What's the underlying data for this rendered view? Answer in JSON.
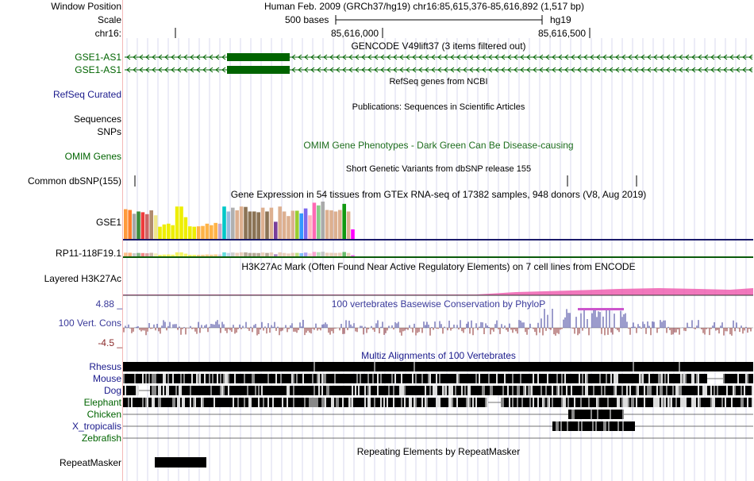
{
  "header": {
    "window_position_label": "Window Position",
    "window_position_value": "Human Feb. 2009 (GRCh37/hg19)   chr16:85,615,376-85,616,892 (1,517 bp)",
    "scale_label": "Scale",
    "scale_bar_text": "500 bases",
    "scale_assembly": "hg19",
    "chrom_label": "chr16:",
    "tick_1": "85,616,000",
    "tick_2": "85,616,500"
  },
  "gencode": {
    "title": "GENCODE V49lift37 (3 items filtered out)",
    "items": [
      "GSE1-AS1",
      "GSE1-AS1"
    ]
  },
  "refseq": {
    "title": "RefSeq genes from NCBI",
    "label": "RefSeq Curated"
  },
  "publications": {
    "title": "Publications: Sequences in Scientific Articles",
    "label_1": "Sequences",
    "label_2": "SNPs"
  },
  "omim": {
    "title": "OMIM Gene Phenotypes - Dark Green Can Be Disease-causing",
    "label": "OMIM Genes"
  },
  "dbsnp": {
    "title": "Short Genetic Variants from dbSNP release 155",
    "label": "Common dbSNP(155)"
  },
  "gtex": {
    "title": "Gene Expression in 54 tissues from GTEx RNA-seq of 17382 samples, 948 donors (V8, Aug 2019)",
    "gene_1": "GSE1",
    "gene_2": "RP11-118F19.1"
  },
  "h3k27ac": {
    "title": "H3K27Ac Mark (Often Found Near Active Regulatory Elements) on 7 cell lines from ENCODE",
    "label": "Layered H3K27Ac"
  },
  "conservation": {
    "title": "100 vertebrates Basewise Conservation by PhyloP",
    "label": "100 Vert. Cons",
    "max_label": "4.88 _",
    "min_label": "-4.5 _"
  },
  "multiz": {
    "title": "Multiz Alignments of 100 Vertebrates",
    "species": [
      "Rhesus",
      "Mouse",
      "Dog",
      "Elephant",
      "Chicken",
      "X_tropicalis",
      "Zebrafish"
    ]
  },
  "repeatmasker": {
    "title": "Repeating Elements by RepeatMasker",
    "label": "RepeatMasker"
  },
  "colors": {
    "gene_green": "#006400",
    "label_blue": "#1a1a8c",
    "label_green": "#006400",
    "omim_green": "#1e6e1e",
    "cons_blue": "#3a3a9a",
    "cons_red": "#8a2a2a",
    "h3k27_pink": "#ef5fb0",
    "grid": "#d9d9ef"
  },
  "gtex_tissue_colors": [
    "#ff9a3c",
    "#ff7f2a",
    "#a6a6a6",
    "#3c8c3c",
    "#ee3b3b",
    "#cc6666",
    "#b08a6e",
    "#f0e68c",
    "#eeee00",
    "#eeee00",
    "#eeee00",
    "#eeee00",
    "#eeee00",
    "#eeee00",
    "#eeee00",
    "#eeee00",
    "#eeee00",
    "#ffb347",
    "#ffb347",
    "#ffb347",
    "#ffb347",
    "#ffb347",
    "#c8a8c8",
    "#00c8c8",
    "#99bbdd",
    "#b0b0b0",
    "#ddb090",
    "#ddb090",
    "#8b7355",
    "#8b7355",
    "#8b7355",
    "#8b7355",
    "#ddb090",
    "#8b7355",
    "#ddb090",
    "#7a3d9a",
    "#ddb090",
    "#ddb090",
    "#ddb090",
    "#ddb090",
    "#9acd32",
    "#3399ff",
    "#7b68ee",
    "#ffb6c1",
    "#ff69b4",
    "#88cc88",
    "#aaaaaa",
    "#ddb090",
    "#ddb090",
    "#ddb090",
    "#ddb090",
    "#119911",
    "#ddb090",
    "#ff00ff"
  ],
  "gtex_values": [
    0.78,
    0.76,
    0.66,
    0.72,
    0.7,
    0.65,
    0.75,
    0.62,
    0.32,
    0.38,
    0.4,
    0.36,
    0.85,
    0.85,
    0.57,
    0.33,
    0.32,
    0.33,
    0.34,
    0.4,
    0.36,
    0.42,
    0.4,
    0.85,
    0.72,
    0.82,
    0.75,
    0.85,
    0.84,
    0.72,
    0.72,
    0.7,
    0.82,
    0.72,
    0.82,
    0.45,
    0.85,
    0.72,
    0.6,
    0.74,
    0.74,
    0.67,
    0.8,
    0.62,
    0.95,
    0.88,
    0.98,
    0.76,
    0.75,
    0.72,
    0.76,
    0.92,
    0.72,
    0.25
  ]
}
